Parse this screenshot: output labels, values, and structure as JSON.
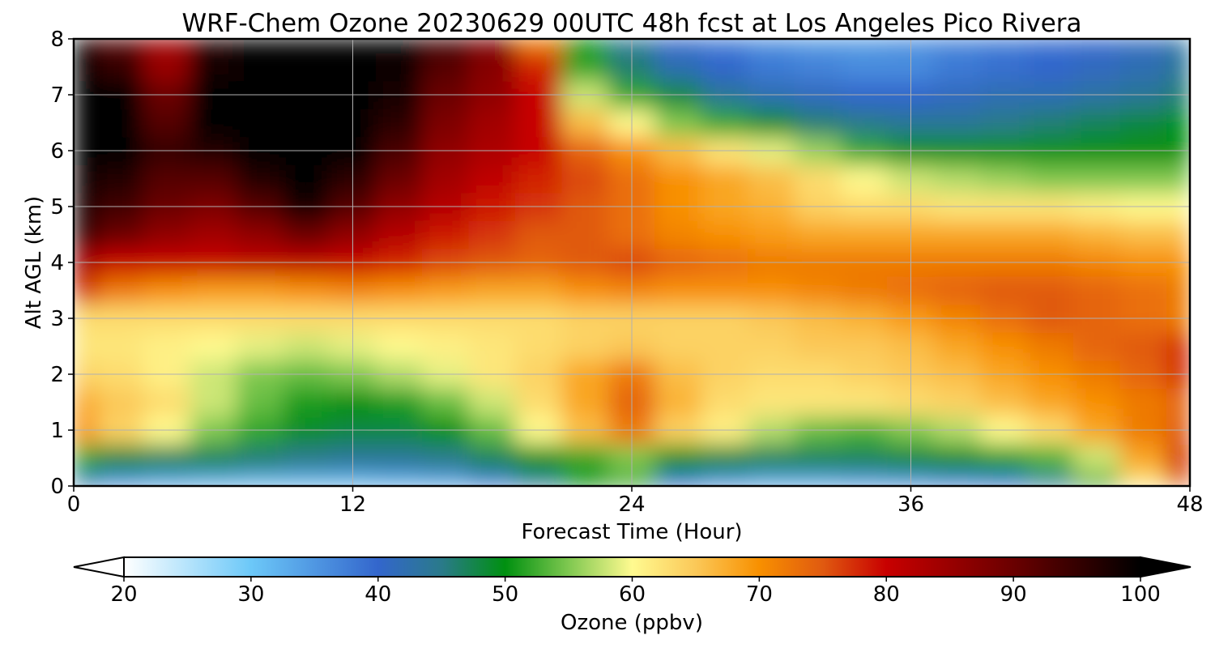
{
  "chart_data": {
    "type": "heatmap",
    "title": "WRF-Chem Ozone  20230629 00UTC 48h fcst at Los Angeles Pico Rivera",
    "xlabel": "Forecast Time (Hour)",
    "ylabel": "Alt AGL (km)",
    "xlim": [
      0,
      48
    ],
    "ylim": [
      0,
      8
    ],
    "xticks": [
      0,
      12,
      24,
      36,
      48
    ],
    "yticks": [
      0,
      1,
      2,
      3,
      4,
      5,
      6,
      7,
      8
    ],
    "grid": true,
    "x": [
      0,
      2,
      4,
      6,
      8,
      10,
      12,
      14,
      16,
      18,
      20,
      22,
      24,
      26,
      28,
      30,
      32,
      34,
      36,
      38,
      40,
      42,
      44,
      46,
      48
    ],
    "y": [
      0,
      0.5,
      1,
      1.5,
      2,
      2.5,
      3,
      3.5,
      4,
      4.5,
      5,
      5.5,
      6,
      6.5,
      7,
      7.5,
      8
    ],
    "z": [
      [
        42,
        36,
        34,
        33,
        32,
        32,
        32,
        33,
        34,
        38,
        44,
        50,
        52,
        40,
        36,
        34,
        34,
        35,
        36,
        38,
        40,
        44,
        52,
        62,
        75
      ],
      [
        52,
        48,
        47,
        47,
        46,
        45,
        44,
        44,
        45,
        47,
        50,
        52,
        55,
        50,
        48,
        47,
        47,
        47,
        48,
        49,
        51,
        53,
        58,
        68,
        78
      ],
      [
        70,
        64,
        60,
        55,
        52,
        49,
        48,
        48,
        50,
        54,
        60,
        66,
        72,
        64,
        61,
        57,
        54,
        53,
        55,
        57,
        60,
        63,
        68,
        72,
        75
      ],
      [
        68,
        65,
        63,
        58,
        54,
        51,
        50,
        51,
        54,
        58,
        63,
        68,
        74,
        67,
        63,
        62,
        62,
        62,
        63,
        64,
        66,
        68,
        70,
        72,
        74
      ],
      [
        64,
        63,
        61,
        58,
        55,
        54,
        55,
        57,
        59,
        62,
        64,
        68,
        72,
        66,
        64,
        63,
        63,
        64,
        65,
        66,
        68,
        70,
        72,
        74,
        78
      ],
      [
        62,
        62,
        61,
        60,
        59,
        58,
        59,
        60,
        61,
        62,
        63,
        64,
        65,
        64,
        64,
        64,
        65,
        65,
        66,
        68,
        70,
        72,
        74,
        75,
        78
      ],
      [
        63,
        63,
        63,
        63,
        63,
        63,
        63,
        63,
        63,
        63,
        63,
        64,
        64,
        64,
        64,
        65,
        66,
        67,
        69,
        71,
        73,
        75,
        74,
        73,
        72
      ],
      [
        78,
        72,
        70,
        69,
        69,
        70,
        71,
        70,
        69,
        68,
        68,
        70,
        71,
        70,
        70,
        70,
        71,
        72,
        73,
        74,
        75,
        75,
        74,
        73,
        72
      ],
      [
        84,
        80,
        80,
        80,
        81,
        81,
        80,
        78,
        76,
        75,
        74,
        75,
        76,
        74,
        73,
        72,
        72,
        72,
        72,
        72,
        72,
        72,
        71,
        70,
        70
      ],
      [
        96,
        90,
        86,
        84,
        86,
        90,
        86,
        82,
        79,
        77,
        75,
        75,
        73,
        71,
        70,
        69,
        68,
        68,
        68,
        68,
        68,
        68,
        67,
        66,
        66
      ],
      [
        98,
        94,
        90,
        88,
        92,
        98,
        92,
        86,
        82,
        79,
        77,
        75,
        73,
        70,
        68,
        67,
        64,
        63,
        63,
        62,
        62,
        62,
        61,
        60,
        60
      ],
      [
        99,
        97,
        92,
        92,
        97,
        100,
        96,
        90,
        84,
        81,
        78,
        76,
        73,
        70,
        68,
        66,
        63,
        60,
        58,
        57,
        56,
        55,
        55,
        55,
        55
      ],
      [
        100,
        100,
        95,
        97,
        100,
        100,
        100,
        93,
        86,
        83,
        80,
        74,
        70,
        66,
        62,
        59,
        56,
        52,
        50,
        50,
        50,
        50,
        50,
        50,
        50
      ],
      [
        100,
        100,
        92,
        100,
        100,
        100,
        100,
        96,
        88,
        84,
        80,
        66,
        60,
        55,
        52,
        49,
        46,
        45,
        44,
        44,
        45,
        46,
        47,
        48,
        50
      ],
      [
        100,
        100,
        90,
        100,
        100,
        100,
        100,
        98,
        90,
        86,
        80,
        58,
        52,
        48,
        44,
        42,
        41,
        40,
        40,
        41,
        42,
        42,
        43,
        44,
        46
      ],
      [
        100,
        95,
        85,
        98,
        100,
        100,
        100,
        99,
        92,
        87,
        78,
        52,
        46,
        42,
        40,
        38,
        37,
        36,
        36,
        38,
        39,
        40,
        41,
        42,
        44
      ],
      [
        100,
        92,
        84,
        97,
        100,
        100,
        100,
        100,
        94,
        88,
        72,
        50,
        44,
        40,
        38,
        36,
        35,
        35,
        36,
        37,
        38,
        39,
        40,
        41,
        43
      ]
    ],
    "colorbar": {
      "label": "Ozone  (ppbv)",
      "min": 20,
      "max": 100,
      "ticks": [
        20,
        30,
        40,
        50,
        60,
        70,
        80,
        90,
        100
      ],
      "extend": "both",
      "stops": [
        [
          20,
          "#ffffff"
        ],
        [
          30,
          "#6cc8f8"
        ],
        [
          40,
          "#3366cc"
        ],
        [
          45,
          "#2a7a8a"
        ],
        [
          50,
          "#009010"
        ],
        [
          55,
          "#7fc850"
        ],
        [
          60,
          "#fffa90"
        ],
        [
          65,
          "#fbc858"
        ],
        [
          70,
          "#f89000"
        ],
        [
          75,
          "#e05a10"
        ],
        [
          80,
          "#c80000"
        ],
        [
          90,
          "#6a0000"
        ],
        [
          100,
          "#000000"
        ]
      ]
    }
  }
}
